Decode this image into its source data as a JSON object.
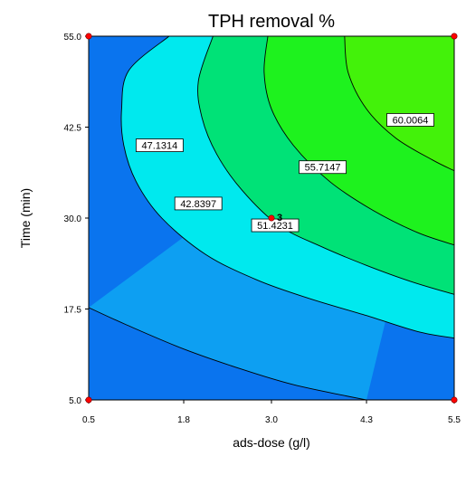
{
  "chart_data": {
    "type": "contour",
    "title": "TPH removal %",
    "xlabel": "ads-dose (g/l)",
    "ylabel": "Time (min)",
    "xlim": [
      0.5,
      5.5
    ],
    "ylim": [
      5.0,
      55.0
    ],
    "xticks": [
      "0.5",
      "1.8",
      "3.0",
      "4.3",
      "5.5"
    ],
    "yticks": [
      "5.0",
      "17.5",
      "30.0",
      "42.5",
      "55.0"
    ],
    "contour_levels": [
      {
        "label": "42.8397",
        "label_at": [
          2.0,
          32
        ],
        "path": [
          [
            0.5,
            17.7
          ],
          [
            1.0,
            15.4
          ],
          [
            1.8,
            12.0
          ],
          [
            2.6,
            9.2
          ],
          [
            3.3,
            7.1
          ],
          [
            4.0,
            5.6
          ],
          [
            4.3,
            5.0
          ]
        ]
      },
      {
        "label": "47.1314",
        "label_at": [
          1.47,
          40
        ],
        "path": [
          [
            1.6,
            55.0
          ],
          [
            1.05,
            50.3
          ],
          [
            0.95,
            45.0
          ],
          [
            0.98,
            40.0
          ],
          [
            1.15,
            35.0
          ],
          [
            1.5,
            30.0
          ],
          [
            2.1,
            25.0
          ],
          [
            2.8,
            21.5
          ],
          [
            3.5,
            19.0
          ],
          [
            4.3,
            16.6
          ],
          [
            5.0,
            14.4
          ],
          [
            5.5,
            13.5
          ]
        ]
      },
      {
        "label": "51.4231",
        "label_at": [
          3.05,
          29
        ],
        "path": [
          [
            2.2,
            55.0
          ],
          [
            2.0,
            48.8
          ],
          [
            2.05,
            43.8
          ],
          [
            2.25,
            38.8
          ],
          [
            2.6,
            33.8
          ],
          [
            3.1,
            29.0
          ],
          [
            3.7,
            26.0
          ],
          [
            4.3,
            23.5
          ],
          [
            4.9,
            21.3
          ],
          [
            5.5,
            19.5
          ]
        ]
      },
      {
        "label": "55.7147",
        "label_at": [
          3.7,
          37
        ],
        "path": [
          [
            2.95,
            55.0
          ],
          [
            2.9,
            50.0
          ],
          [
            3.0,
            45.0
          ],
          [
            3.3,
            40.0
          ],
          [
            3.8,
            35.0
          ],
          [
            4.4,
            31.0
          ],
          [
            5.0,
            28.0
          ],
          [
            5.5,
            26.3
          ]
        ]
      },
      {
        "label": "60.0064",
        "label_at": [
          4.9,
          43.5
        ],
        "path": [
          [
            4.0,
            55.0
          ],
          [
            4.05,
            50.0
          ],
          [
            4.3,
            45.0
          ],
          [
            4.7,
            41.0
          ],
          [
            5.2,
            38.0
          ],
          [
            5.5,
            36.5
          ]
        ]
      }
    ],
    "region_colors": [
      "#0a74ee",
      "#0d9ff2",
      "#00e9ee",
      "#00e277",
      "#1ef21e",
      "#43f20a"
    ],
    "design_points": [
      {
        "x": 0.5,
        "y": 55.0
      },
      {
        "x": 5.5,
        "y": 55.0
      },
      {
        "x": 0.5,
        "y": 5.0
      },
      {
        "x": 5.5,
        "y": 5.0
      },
      {
        "x": 3.0,
        "y": 30.0,
        "label": "3"
      }
    ],
    "point_color": "#ff0000"
  }
}
